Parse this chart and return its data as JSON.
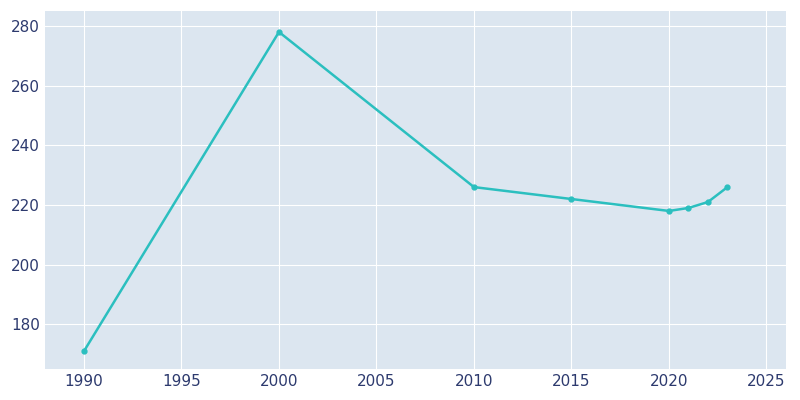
{
  "years": [
    1990,
    2000,
    2010,
    2015,
    2020,
    2021,
    2022,
    2023
  ],
  "population": [
    171,
    278,
    226,
    222,
    218,
    219,
    221,
    226
  ],
  "line_color": "#2bbfbf",
  "bg_color": "#ffffff",
  "plot_bg_color": "#dce6f0",
  "grid_color": "#ffffff",
  "xlabel": "",
  "ylabel": "",
  "xlim": [
    1988,
    2026
  ],
  "ylim": [
    165,
    285
  ],
  "xticks": [
    1990,
    1995,
    2000,
    2005,
    2010,
    2015,
    2020,
    2025
  ],
  "yticks": [
    180,
    200,
    220,
    240,
    260,
    280
  ],
  "tick_label_color": "#2d3a6e",
  "line_width": 1.8,
  "marker": "o",
  "marker_size": 3.5
}
